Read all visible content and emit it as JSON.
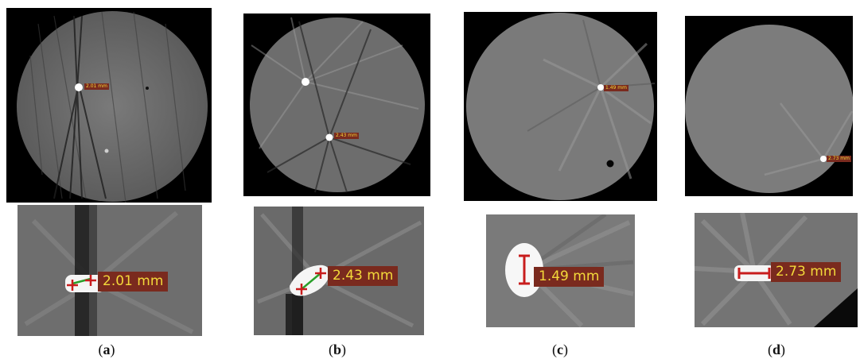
{
  "panels": [
    {
      "id": "a",
      "caption_open": "(",
      "caption_letter": "a",
      "caption_close": ")",
      "overview_label": "2.01 mm",
      "zoom_label": "2.01 mm",
      "measurement_color": "#c81d1d",
      "diameter_line_color": "#2aa02a"
    },
    {
      "id": "b",
      "caption_open": "(",
      "caption_letter": "b",
      "caption_close": ")",
      "overview_label": "2.43 mm",
      "zoom_label": "2.43 mm",
      "measurement_color": "#c81d1d",
      "diameter_line_color": "#2aa02a"
    },
    {
      "id": "c",
      "caption_open": "(",
      "caption_letter": "c",
      "caption_close": ")",
      "overview_label": "1.49 mm",
      "zoom_label": "1.49 mm",
      "measurement_color": "#c81d1d"
    },
    {
      "id": "d",
      "caption_open": "(",
      "caption_letter": "d",
      "caption_close": ")",
      "overview_label": "2.73 mm",
      "zoom_label": "2.73 mm",
      "measurement_color": "#c81d1d"
    }
  ]
}
